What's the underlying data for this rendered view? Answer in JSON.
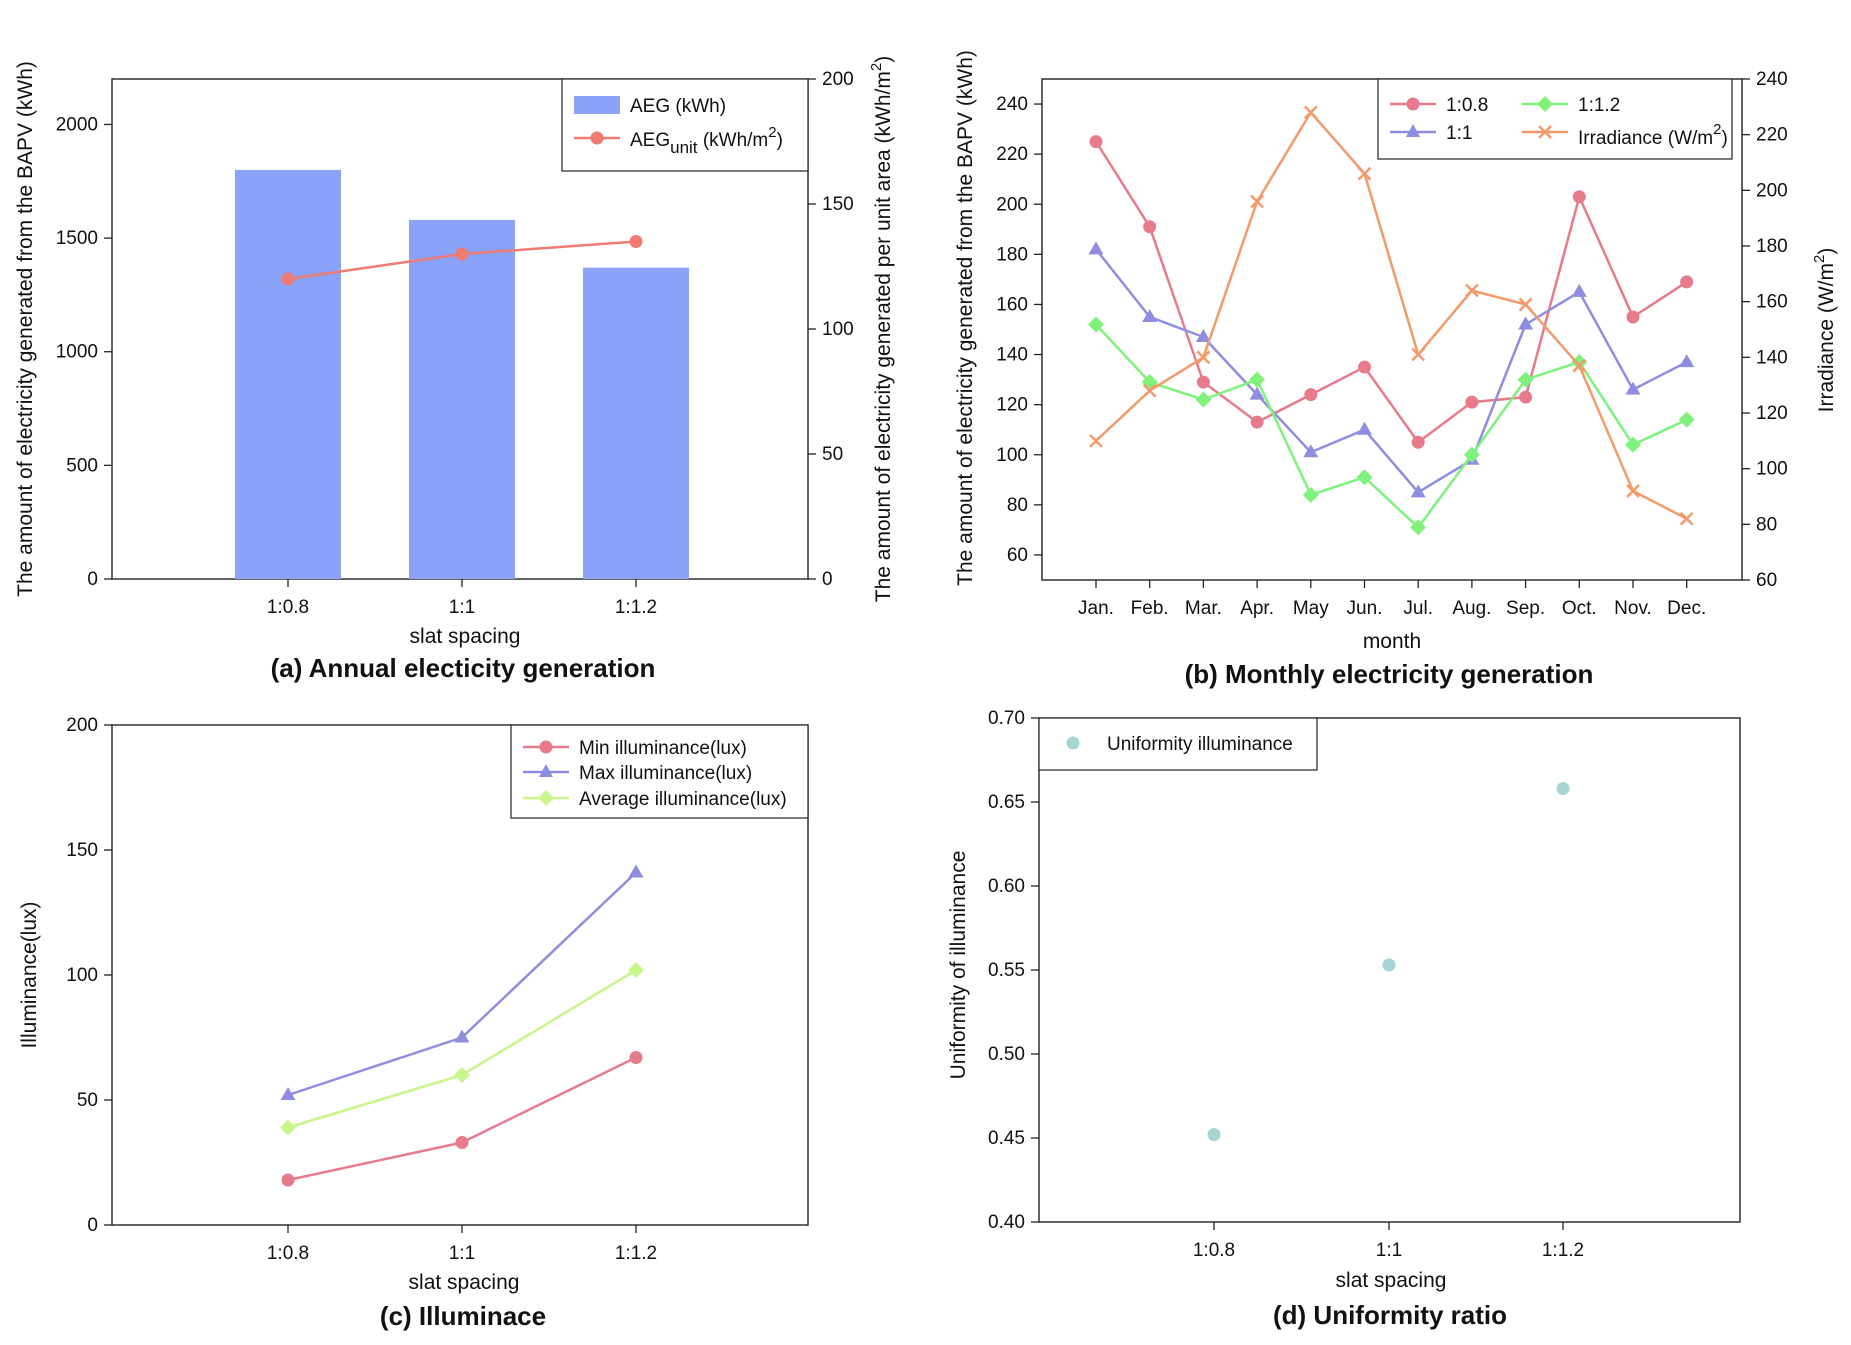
{
  "colors": {
    "bar": "#8aa3f8",
    "aeg_unit": "#ef7b72",
    "s08": "#e77b8b",
    "s1": "#8f8de0",
    "s12": "#7ef27a",
    "irr": "#f49a6a",
    "avg_illum": "#c8f68a",
    "uniform": "#a6d4d4"
  },
  "chart_data": [
    {
      "id": "a",
      "type": "bar",
      "caption": "(a) Annual electicity generation",
      "xlabel": "slat spacing",
      "ylabel": "The amount of electricity generated from the BAPV (kWh)",
      "y2label": "The amount of electricity generated per unit area (kWh/m²)",
      "categories": [
        "1:0.8",
        "1:1",
        "1:1.2"
      ],
      "ylim": [
        0,
        2200
      ],
      "yticks": [
        0,
        500,
        1000,
        1500,
        2000
      ],
      "y2lim": [
        0,
        200
      ],
      "y2ticks": [
        0,
        50,
        100,
        150,
        200
      ],
      "series": [
        {
          "name": "AEG (kWh)",
          "kind": "bar",
          "axis": "left",
          "values": [
            1800,
            1580,
            1370
          ]
        },
        {
          "name": "AEGunit (kWh/m2)",
          "kind": "line",
          "axis": "right",
          "values": [
            120,
            130,
            135
          ]
        }
      ],
      "legend": {
        "position": "top-right",
        "items": [
          "AEG (kWh)",
          "AEG",
          "unit",
          " (kWh/m",
          "2",
          ")"
        ]
      }
    },
    {
      "id": "b",
      "type": "line",
      "caption": "(b) Monthly electricity generation",
      "xlabel": "month",
      "ylabel": "The amount of electricity generated from the BAPV (kWh)",
      "y2label": "Irradiance (W/m²)",
      "categories": [
        "Jan.",
        "Feb.",
        "Mar.",
        "Apr.",
        "May",
        "Jun.",
        "Jul.",
        "Aug.",
        "Sep.",
        "Oct.",
        "Nov.",
        "Dec."
      ],
      "ylim": [
        50,
        250
      ],
      "yticks": [
        60,
        80,
        100,
        120,
        140,
        160,
        180,
        200,
        220,
        240
      ],
      "y2lim": [
        60,
        240
      ],
      "y2ticks": [
        60,
        80,
        100,
        120,
        140,
        160,
        180,
        200,
        220,
        240
      ],
      "series": [
        {
          "name": "1:0.8",
          "axis": "left",
          "marker": "circle",
          "values": [
            225,
            191,
            129,
            113,
            124,
            135,
            105,
            121,
            123,
            203,
            155,
            169
          ]
        },
        {
          "name": "1:1",
          "axis": "left",
          "marker": "triangle",
          "values": [
            182,
            155,
            147,
            124,
            101,
            110,
            85,
            98,
            152,
            165,
            126,
            137
          ]
        },
        {
          "name": "1:1.2",
          "axis": "left",
          "marker": "diamond",
          "values": [
            152,
            129,
            122,
            130,
            84,
            91,
            71,
            100,
            130,
            137,
            104,
            114
          ]
        },
        {
          "name": "Irradiance (W/m2)",
          "axis": "right",
          "marker": "x",
          "values": [
            110,
            128,
            140,
            196,
            228,
            206,
            141,
            164,
            159,
            137,
            92,
            82
          ]
        }
      ],
      "legend": {
        "position": "top-right",
        "items": [
          "1:0.8",
          "1:1",
          "1:1.2",
          "Irradiance (W/m",
          "2",
          ")"
        ]
      }
    },
    {
      "id": "c",
      "type": "line",
      "caption": "(c) Illuminace",
      "xlabel": "slat spacing",
      "ylabel": "Illuminance(lux)",
      "categories": [
        "1:0.8",
        "1:1",
        "1:1.2"
      ],
      "ylim": [
        0,
        200
      ],
      "yticks": [
        0,
        50,
        100,
        150,
        200
      ],
      "series": [
        {
          "name": "Min illuminance(lux)",
          "marker": "circle",
          "values": [
            18,
            33,
            67
          ]
        },
        {
          "name": "Max illuminance(lux)",
          "marker": "triangle",
          "values": [
            52,
            75,
            141
          ]
        },
        {
          "name": "Average illuminance(lux)",
          "marker": "diamond",
          "values": [
            39,
            60,
            102
          ]
        }
      ],
      "legend": {
        "position": "top-right",
        "items": [
          "Min illuminance(lux)",
          "Max illuminance(lux)",
          "Average illuminance(lux)"
        ]
      }
    },
    {
      "id": "d",
      "type": "scatter",
      "caption": "(d) Uniformity ratio",
      "xlabel": "slat spacing",
      "ylabel": "Uniformity of illuminance",
      "categories": [
        "1:0.8",
        "1:1",
        "1:1.2"
      ],
      "ylim": [
        0.4,
        0.7
      ],
      "yticks": [
        "0.40",
        "0.45",
        "0.50",
        "0.55",
        "0.60",
        "0.65",
        "0.70"
      ],
      "series": [
        {
          "name": "Uniformity illuminance",
          "marker": "circle",
          "values": [
            0.452,
            0.553,
            0.658
          ]
        }
      ],
      "legend": {
        "position": "top-left",
        "items": [
          "Uniformity illuminance"
        ]
      }
    }
  ]
}
